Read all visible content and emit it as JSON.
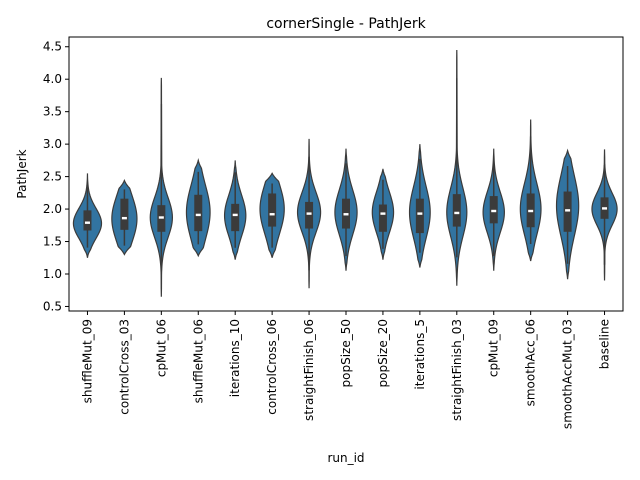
{
  "chart_data": {
    "type": "violin",
    "title": "cornerSingle - PathJerk",
    "xlabel": "run_id",
    "ylabel": "PathJerk",
    "ylim": [
      0.43,
      4.65
    ],
    "yticks": [
      0.5,
      1.0,
      1.5,
      2.0,
      2.5,
      3.0,
      3.5,
      4.0,
      4.5
    ],
    "ytick_labels": [
      "0.5",
      "1.0",
      "1.5",
      "2.0",
      "2.5",
      "3.0",
      "3.5",
      "4.0",
      "4.5"
    ],
    "grid": false,
    "colors": {
      "violin_fill": "#3274a1",
      "outline": "#3b3b3b",
      "box": "#3b3b3b",
      "median": "#ffffff"
    },
    "categories": [
      "shuffleMut_09",
      "controlCross_03",
      "cpMut_06",
      "shuffleMut_06",
      "iterations_10",
      "controlCross_06",
      "straightFinish_06",
      "popSize_50",
      "popSize_20",
      "iterations_5",
      "straightFinish_03",
      "cpMut_09",
      "smoothAcc_06",
      "smoothAccMut_03",
      "baseline"
    ],
    "series": [
      {
        "min": 1.25,
        "q1": 1.67,
        "median": 1.79,
        "q3": 1.98,
        "max": 2.55,
        "mode": 1.78,
        "halfwidth": 0.95
      },
      {
        "min": 1.3,
        "q1": 1.68,
        "median": 1.86,
        "q3": 2.16,
        "max": 2.44,
        "mode": 1.85,
        "halfwidth": 0.85
      },
      {
        "min": 0.65,
        "q1": 1.65,
        "median": 1.87,
        "q3": 2.06,
        "max": 4.02,
        "mode": 1.87,
        "halfwidth": 0.75
      },
      {
        "min": 1.28,
        "q1": 1.66,
        "median": 1.91,
        "q3": 2.22,
        "max": 2.75,
        "mode": 1.95,
        "halfwidth": 0.8
      },
      {
        "min": 1.22,
        "q1": 1.66,
        "median": 1.91,
        "q3": 2.08,
        "max": 2.75,
        "mode": 1.9,
        "halfwidth": 0.72
      },
      {
        "min": 1.25,
        "q1": 1.73,
        "median": 1.92,
        "q3": 2.24,
        "max": 2.55,
        "mode": 2.0,
        "halfwidth": 0.82
      },
      {
        "min": 0.78,
        "q1": 1.7,
        "median": 1.93,
        "q3": 2.11,
        "max": 3.08,
        "mode": 1.95,
        "halfwidth": 0.78
      },
      {
        "min": 1.05,
        "q1": 1.7,
        "median": 1.92,
        "q3": 2.16,
        "max": 2.93,
        "mode": 1.95,
        "halfwidth": 0.75
      },
      {
        "min": 1.22,
        "q1": 1.65,
        "median": 1.93,
        "q3": 2.07,
        "max": 2.62,
        "mode": 1.95,
        "halfwidth": 0.72
      },
      {
        "min": 1.1,
        "q1": 1.63,
        "median": 1.93,
        "q3": 2.16,
        "max": 3.0,
        "mode": 1.95,
        "halfwidth": 0.7
      },
      {
        "min": 0.82,
        "q1": 1.73,
        "median": 1.94,
        "q3": 2.23,
        "max": 4.45,
        "mode": 1.95,
        "halfwidth": 0.68
      },
      {
        "min": 1.05,
        "q1": 1.78,
        "median": 1.97,
        "q3": 2.2,
        "max": 2.93,
        "mode": 1.95,
        "halfwidth": 0.72
      },
      {
        "min": 1.2,
        "q1": 1.72,
        "median": 1.97,
        "q3": 2.24,
        "max": 3.38,
        "mode": 2.0,
        "halfwidth": 0.7
      },
      {
        "min": 0.92,
        "q1": 1.65,
        "median": 1.98,
        "q3": 2.27,
        "max": 2.9,
        "mode": 2.05,
        "halfwidth": 0.75
      },
      {
        "min": 0.9,
        "q1": 1.85,
        "median": 2.01,
        "q3": 2.18,
        "max": 2.92,
        "mode": 2.0,
        "halfwidth": 0.85
      }
    ]
  }
}
